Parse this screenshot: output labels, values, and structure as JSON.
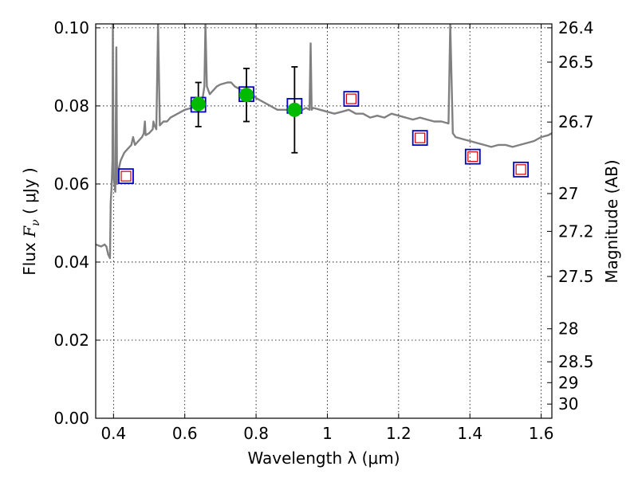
{
  "chart_data": {
    "type": "scatter",
    "title": "",
    "xlabel": "Wavelength  λ (μm)",
    "ylabel": "Flux  F_ν ( μJy )",
    "ylabel_parts": {
      "pre": "Flux  ",
      "sym": "F",
      "sub": "ν",
      "post": "  ( μJy )"
    },
    "y2label": "Magnitude (AB)",
    "xlim": [
      0.35,
      1.63
    ],
    "ylim": [
      0.0,
      0.101
    ],
    "grid": true,
    "x_ticks": [
      {
        "value": 0.4,
        "label": "0.4"
      },
      {
        "value": 0.6,
        "label": "0.6"
      },
      {
        "value": 0.8,
        "label": "0.8"
      },
      {
        "value": 1.0,
        "label": "1"
      },
      {
        "value": 1.2,
        "label": "1.2"
      },
      {
        "value": 1.4,
        "label": "1.4"
      },
      {
        "value": 1.6,
        "label": "1.6"
      }
    ],
    "y_ticks": [
      {
        "value": 0.0,
        "label": "0.00"
      },
      {
        "value": 0.02,
        "label": "0.02"
      },
      {
        "value": 0.04,
        "label": "0.04"
      },
      {
        "value": 0.06,
        "label": "0.06"
      },
      {
        "value": 0.08,
        "label": "0.08"
      },
      {
        "value": 0.1,
        "label": "0.10"
      }
    ],
    "y2_ticks": [
      {
        "value": 26.4,
        "label": "26.4"
      },
      {
        "value": 26.5,
        "label": "26.5"
      },
      {
        "value": 26.7,
        "label": "26.7"
      },
      {
        "value": 27.0,
        "label": "27"
      },
      {
        "value": 27.2,
        "label": "27.2"
      },
      {
        "value": 27.5,
        "label": "27.5"
      },
      {
        "value": 28.0,
        "label": "28"
      },
      {
        "value": 28.5,
        "label": "28.5"
      },
      {
        "value": 29.0,
        "label": "29"
      },
      {
        "value": 30.0,
        "label": "30"
      }
    ],
    "model_spectrum": {
      "color": "#808080",
      "points": [
        [
          0.35,
          0.0445
        ],
        [
          0.365,
          0.044
        ],
        [
          0.375,
          0.0445
        ],
        [
          0.38,
          0.044
        ],
        [
          0.385,
          0.042
        ],
        [
          0.39,
          0.041
        ],
        [
          0.392,
          0.055
        ],
        [
          0.395,
          0.06
        ],
        [
          0.397,
          0.066
        ],
        [
          0.398,
          0.101
        ],
        [
          0.4,
          0.062
        ],
        [
          0.405,
          0.058
        ],
        [
          0.408,
          0.095
        ],
        [
          0.41,
          0.06
        ],
        [
          0.415,
          0.064
        ],
        [
          0.42,
          0.066
        ],
        [
          0.43,
          0.068
        ],
        [
          0.44,
          0.069
        ],
        [
          0.45,
          0.07
        ],
        [
          0.455,
          0.072
        ],
        [
          0.46,
          0.07
        ],
        [
          0.47,
          0.071
        ],
        [
          0.48,
          0.072
        ],
        [
          0.485,
          0.073
        ],
        [
          0.488,
          0.076
        ],
        [
          0.49,
          0.0725
        ],
        [
          0.5,
          0.073
        ],
        [
          0.51,
          0.074
        ],
        [
          0.512,
          0.076
        ],
        [
          0.515,
          0.075
        ],
        [
          0.52,
          0.074
        ],
        [
          0.525,
          0.101
        ],
        [
          0.53,
          0.075
        ],
        [
          0.54,
          0.076
        ],
        [
          0.55,
          0.076
        ],
        [
          0.56,
          0.077
        ],
        [
          0.58,
          0.078
        ],
        [
          0.6,
          0.079
        ],
        [
          0.62,
          0.0795
        ],
        [
          0.63,
          0.081
        ],
        [
          0.64,
          0.08
        ],
        [
          0.65,
          0.082
        ],
        [
          0.655,
          0.085
        ],
        [
          0.658,
          0.101
        ],
        [
          0.662,
          0.085
        ],
        [
          0.67,
          0.083
        ],
        [
          0.68,
          0.084
        ],
        [
          0.69,
          0.085
        ],
        [
          0.7,
          0.0855
        ],
        [
          0.72,
          0.086
        ],
        [
          0.73,
          0.086
        ],
        [
          0.74,
          0.085
        ],
        [
          0.75,
          0.0845
        ],
        [
          0.76,
          0.084
        ],
        [
          0.77,
          0.083
        ],
        [
          0.78,
          0.084
        ],
        [
          0.79,
          0.083
        ],
        [
          0.8,
          0.082
        ],
        [
          0.82,
          0.081
        ],
        [
          0.84,
          0.08
        ],
        [
          0.86,
          0.079
        ],
        [
          0.88,
          0.079
        ],
        [
          0.9,
          0.079
        ],
        [
          0.92,
          0.0785
        ],
        [
          0.93,
          0.079
        ],
        [
          0.94,
          0.0795
        ],
        [
          0.95,
          0.079
        ],
        [
          0.953,
          0.096
        ],
        [
          0.956,
          0.079
        ],
        [
          0.96,
          0.0795
        ],
        [
          0.98,
          0.079
        ],
        [
          1.0,
          0.0785
        ],
        [
          1.02,
          0.078
        ],
        [
          1.04,
          0.0785
        ],
        [
          1.06,
          0.079
        ],
        [
          1.08,
          0.078
        ],
        [
          1.1,
          0.078
        ],
        [
          1.12,
          0.077
        ],
        [
          1.14,
          0.0775
        ],
        [
          1.16,
          0.077
        ],
        [
          1.18,
          0.078
        ],
        [
          1.2,
          0.0775
        ],
        [
          1.22,
          0.077
        ],
        [
          1.24,
          0.0765
        ],
        [
          1.26,
          0.077
        ],
        [
          1.28,
          0.0765
        ],
        [
          1.3,
          0.076
        ],
        [
          1.32,
          0.076
        ],
        [
          1.34,
          0.0755
        ],
        [
          1.345,
          0.101
        ],
        [
          1.352,
          0.073
        ],
        [
          1.36,
          0.072
        ],
        [
          1.38,
          0.0715
        ],
        [
          1.4,
          0.071
        ],
        [
          1.42,
          0.0705
        ],
        [
          1.44,
          0.07
        ],
        [
          1.46,
          0.0695
        ],
        [
          1.48,
          0.07
        ],
        [
          1.5,
          0.07
        ],
        [
          1.52,
          0.0695
        ],
        [
          1.54,
          0.07
        ],
        [
          1.56,
          0.0705
        ],
        [
          1.58,
          0.071
        ],
        [
          1.6,
          0.072
        ],
        [
          1.62,
          0.0725
        ],
        [
          1.63,
          0.073
        ]
      ]
    },
    "model_photometry": {
      "marker": "square",
      "edge_color": "#0000cc",
      "points": [
        {
          "x": 0.435,
          "y": 0.062
        },
        {
          "x": 0.638,
          "y": 0.0803
        },
        {
          "x": 0.773,
          "y": 0.083
        },
        {
          "x": 0.908,
          "y": 0.08
        },
        {
          "x": 1.067,
          "y": 0.0818
        },
        {
          "x": 1.26,
          "y": 0.0718
        },
        {
          "x": 1.408,
          "y": 0.067
        },
        {
          "x": 1.543,
          "y": 0.0637
        }
      ]
    },
    "upper_limit_points": {
      "marker": "square",
      "edge_color": "#cc0000",
      "points": [
        {
          "x": 0.435,
          "y": 0.062
        },
        {
          "x": 1.067,
          "y": 0.0818
        },
        {
          "x": 1.26,
          "y": 0.0718
        },
        {
          "x": 1.408,
          "y": 0.067
        },
        {
          "x": 1.543,
          "y": 0.0637
        }
      ]
    },
    "observed": {
      "marker": "circle",
      "color": "#00bb00",
      "points": [
        {
          "x": 0.638,
          "y": 0.0805,
          "yerr_low": 0.0058,
          "yerr_high": 0.0055
        },
        {
          "x": 0.773,
          "y": 0.0828,
          "yerr_low": 0.0068,
          "yerr_high": 0.0068
        },
        {
          "x": 0.908,
          "y": 0.079,
          "yerr_low": 0.011,
          "yerr_high": 0.011
        }
      ]
    }
  }
}
